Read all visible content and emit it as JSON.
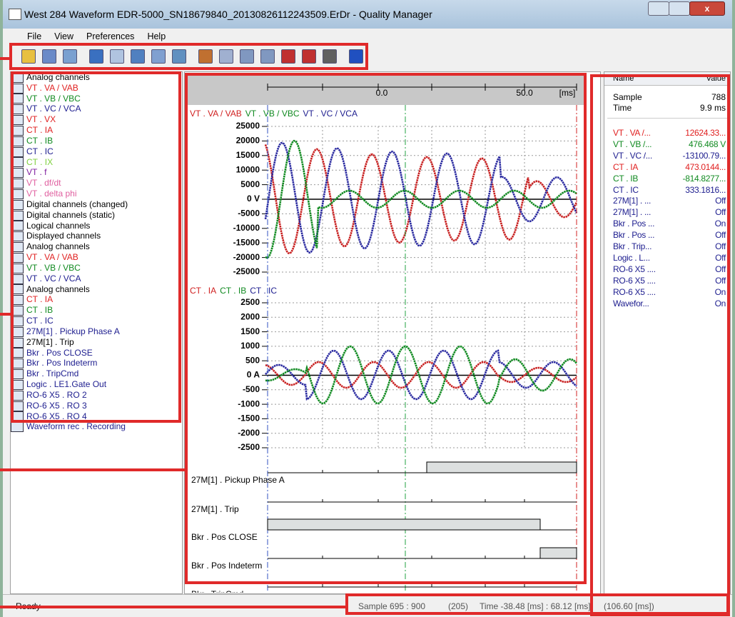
{
  "window": {
    "title": "West 284 Waveform EDR-5000_SN18679840_20130826112243509.ErDr - Quality Manager"
  },
  "menu": [
    "File",
    "View",
    "Preferences",
    "Help"
  ],
  "tree": [
    {
      "label": "Analog channels",
      "level": 1,
      "color": "#000000"
    },
    {
      "label": "VT . VA / VAB",
      "level": 2,
      "color": "#e02020"
    },
    {
      "label": "VT . VB / VBC",
      "level": 2,
      "color": "#108a20"
    },
    {
      "label": "VT . VC / VCA",
      "level": 2,
      "color": "#202090"
    },
    {
      "label": "VT . VX",
      "level": 2,
      "color": "#e02020"
    },
    {
      "label": "CT . IA",
      "level": 2,
      "color": "#e02020"
    },
    {
      "label": "CT . IB",
      "level": 2,
      "color": "#108a20"
    },
    {
      "label": "CT . IC",
      "level": 2,
      "color": "#202090"
    },
    {
      "label": "CT . IX",
      "level": 2,
      "color": "#80d040"
    },
    {
      "label": "VT . f",
      "level": 2,
      "color": "#8020a0"
    },
    {
      "label": "VT . df/dt",
      "level": 2,
      "color": "#e060a0"
    },
    {
      "label": "VT . delta phi",
      "level": 2,
      "color": "#e060a0"
    },
    {
      "label": "Digital channels (changed)",
      "level": 0,
      "color": "#000000"
    },
    {
      "label": "Digital channels (static)",
      "level": 0,
      "color": "#000000"
    },
    {
      "label": "Logical channels",
      "level": 0,
      "color": "#000000"
    },
    {
      "label": "Displayed channels",
      "level": 0,
      "color": "#000000"
    },
    {
      "label": "Analog channels",
      "level": 1,
      "color": "#000000"
    },
    {
      "label": "VT . VA / VAB",
      "level": 2,
      "color": "#e02020"
    },
    {
      "label": "VT . VB / VBC",
      "level": 2,
      "color": "#108a20"
    },
    {
      "label": "VT . VC / VCA",
      "level": 2,
      "color": "#202090"
    },
    {
      "label": "Analog channels",
      "level": 1,
      "color": "#000000"
    },
    {
      "label": "CT . IA",
      "level": 2,
      "color": "#e02020"
    },
    {
      "label": "CT . IB",
      "level": 2,
      "color": "#108a20"
    },
    {
      "label": "CT . IC",
      "level": 2,
      "color": "#202090"
    },
    {
      "label": "27M[1] . Pickup Phase A",
      "level": 1,
      "color": "#202090"
    },
    {
      "label": "27M[1] . Trip",
      "level": 1,
      "color": "#000000"
    },
    {
      "label": "Bkr . Pos CLOSE",
      "level": 1,
      "color": "#202090"
    },
    {
      "label": "Bkr . Pos Indeterm",
      "level": 1,
      "color": "#202090"
    },
    {
      "label": "Bkr . TripCmd",
      "level": 1,
      "color": "#202090"
    },
    {
      "label": "Logic . LE1.Gate Out",
      "level": 1,
      "color": "#202090"
    },
    {
      "label": "RO-6 X5 . RO 2",
      "level": 1,
      "color": "#202090"
    },
    {
      "label": "RO-6 X5 . RO 3",
      "level": 1,
      "color": "#202090"
    },
    {
      "label": "RO-6 X5 . RO 4",
      "level": 1,
      "color": "#202090"
    },
    {
      "label": "Waveform rec . Recording",
      "level": 1,
      "color": "#202090"
    }
  ],
  "chart": {
    "ruler": [
      "0.0",
      "50.0",
      "[ms]"
    ],
    "voltage_legend": [
      {
        "label": "VT . VA / VAB",
        "color": "#d02020"
      },
      {
        "label": "VT . VB / VBC",
        "color": "#108a20"
      },
      {
        "label": "VT . VC / VCA",
        "color": "#202090"
      }
    ],
    "voltage_ticks": [
      "25000",
      "20000",
      "15000",
      "10000",
      "5000",
      "0 V",
      "-5000",
      "-10000",
      "-15000",
      "-20000",
      "-25000"
    ],
    "current_legend": [
      {
        "label": "CT . IA",
        "color": "#d02020"
      },
      {
        "label": "CT . IB",
        "color": "#108a20"
      },
      {
        "label": "CT . IC",
        "color": "#202090"
      }
    ],
    "current_ticks": [
      "2500",
      "2000",
      "1500",
      "1000",
      "500",
      "0 A",
      "-500",
      "-1000",
      "-1500",
      "-2000",
      "-2500"
    ],
    "digital": [
      "27M[1] . Pickup Phase A",
      "27M[1] . Trip",
      "Bkr . Pos CLOSE",
      "Bkr . Pos Indeterm",
      "Bkr . TripCmd"
    ]
  },
  "values_panel": {
    "header": [
      "Name",
      "Value"
    ],
    "info": [
      [
        "Sample",
        "788"
      ],
      [
        "Time",
        "9.9 ms"
      ]
    ],
    "rows": [
      {
        "name": "VT . VA /...",
        "value": "12624.33...",
        "color": "#e02020"
      },
      {
        "name": "VT . VB /...",
        "value": "476.468 V",
        "color": "#108a20"
      },
      {
        "name": "VT . VC /...",
        "value": "-13100.79...",
        "color": "#202090"
      },
      {
        "name": "CT . IA",
        "value": "473.0144...",
        "color": "#e02020"
      },
      {
        "name": "CT . IB",
        "value": "-814.8277...",
        "color": "#108a20"
      },
      {
        "name": "CT . IC",
        "value": "333.1816...",
        "color": "#202090"
      },
      {
        "name": "27M[1] . ...",
        "value": "Off",
        "color": "#202090"
      },
      {
        "name": "27M[1] . ...",
        "value": "Off",
        "color": "#202090"
      },
      {
        "name": "Bkr . Pos ...",
        "value": "On",
        "color": "#202090"
      },
      {
        "name": "Bkr . Pos ...",
        "value": "Off",
        "color": "#202090"
      },
      {
        "name": "Bkr . Trip...",
        "value": "Off",
        "color": "#202090"
      },
      {
        "name": "Logic . L...",
        "value": "Off",
        "color": "#202090"
      },
      {
        "name": "RO-6 X5 ....",
        "value": "Off",
        "color": "#202090"
      },
      {
        "name": "RO-6 X5 ....",
        "value": "Off",
        "color": "#202090"
      },
      {
        "name": "RO-6 X5 ....",
        "value": "On",
        "color": "#202090"
      },
      {
        "name": "Wavefor...",
        "value": "On",
        "color": "#202090"
      }
    ]
  },
  "status": {
    "ready": "Ready",
    "sample": "Sample 695 : 900",
    "count": "(205)",
    "time": "Time -38.48 [ms] : 68.12 [ms]",
    "span": "(106.60 [ms])"
  }
}
